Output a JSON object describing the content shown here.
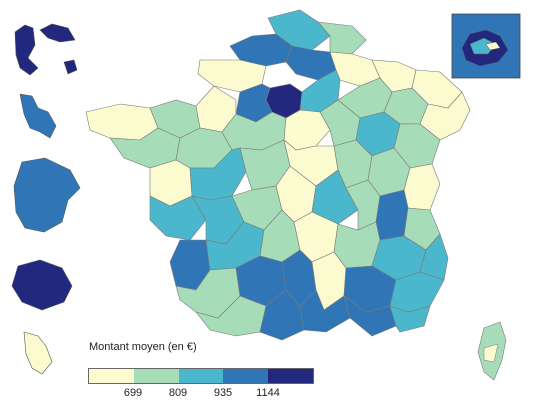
{
  "legend": {
    "title": "Montant moyen (en €)",
    "breaks": [
      "699",
      "809",
      "935",
      "1144"
    ],
    "colors": [
      "#fbfbcf",
      "#a6dcb7",
      "#4ab7cc",
      "#3076b6",
      "#22287e"
    ]
  },
  "palette": {
    "class1": "#fbfbcf",
    "class2": "#a6dcb7",
    "class3": "#4ab7cc",
    "class4": "#3076b6",
    "class5": "#22287e",
    "border": "#7a7a7a"
  }
}
